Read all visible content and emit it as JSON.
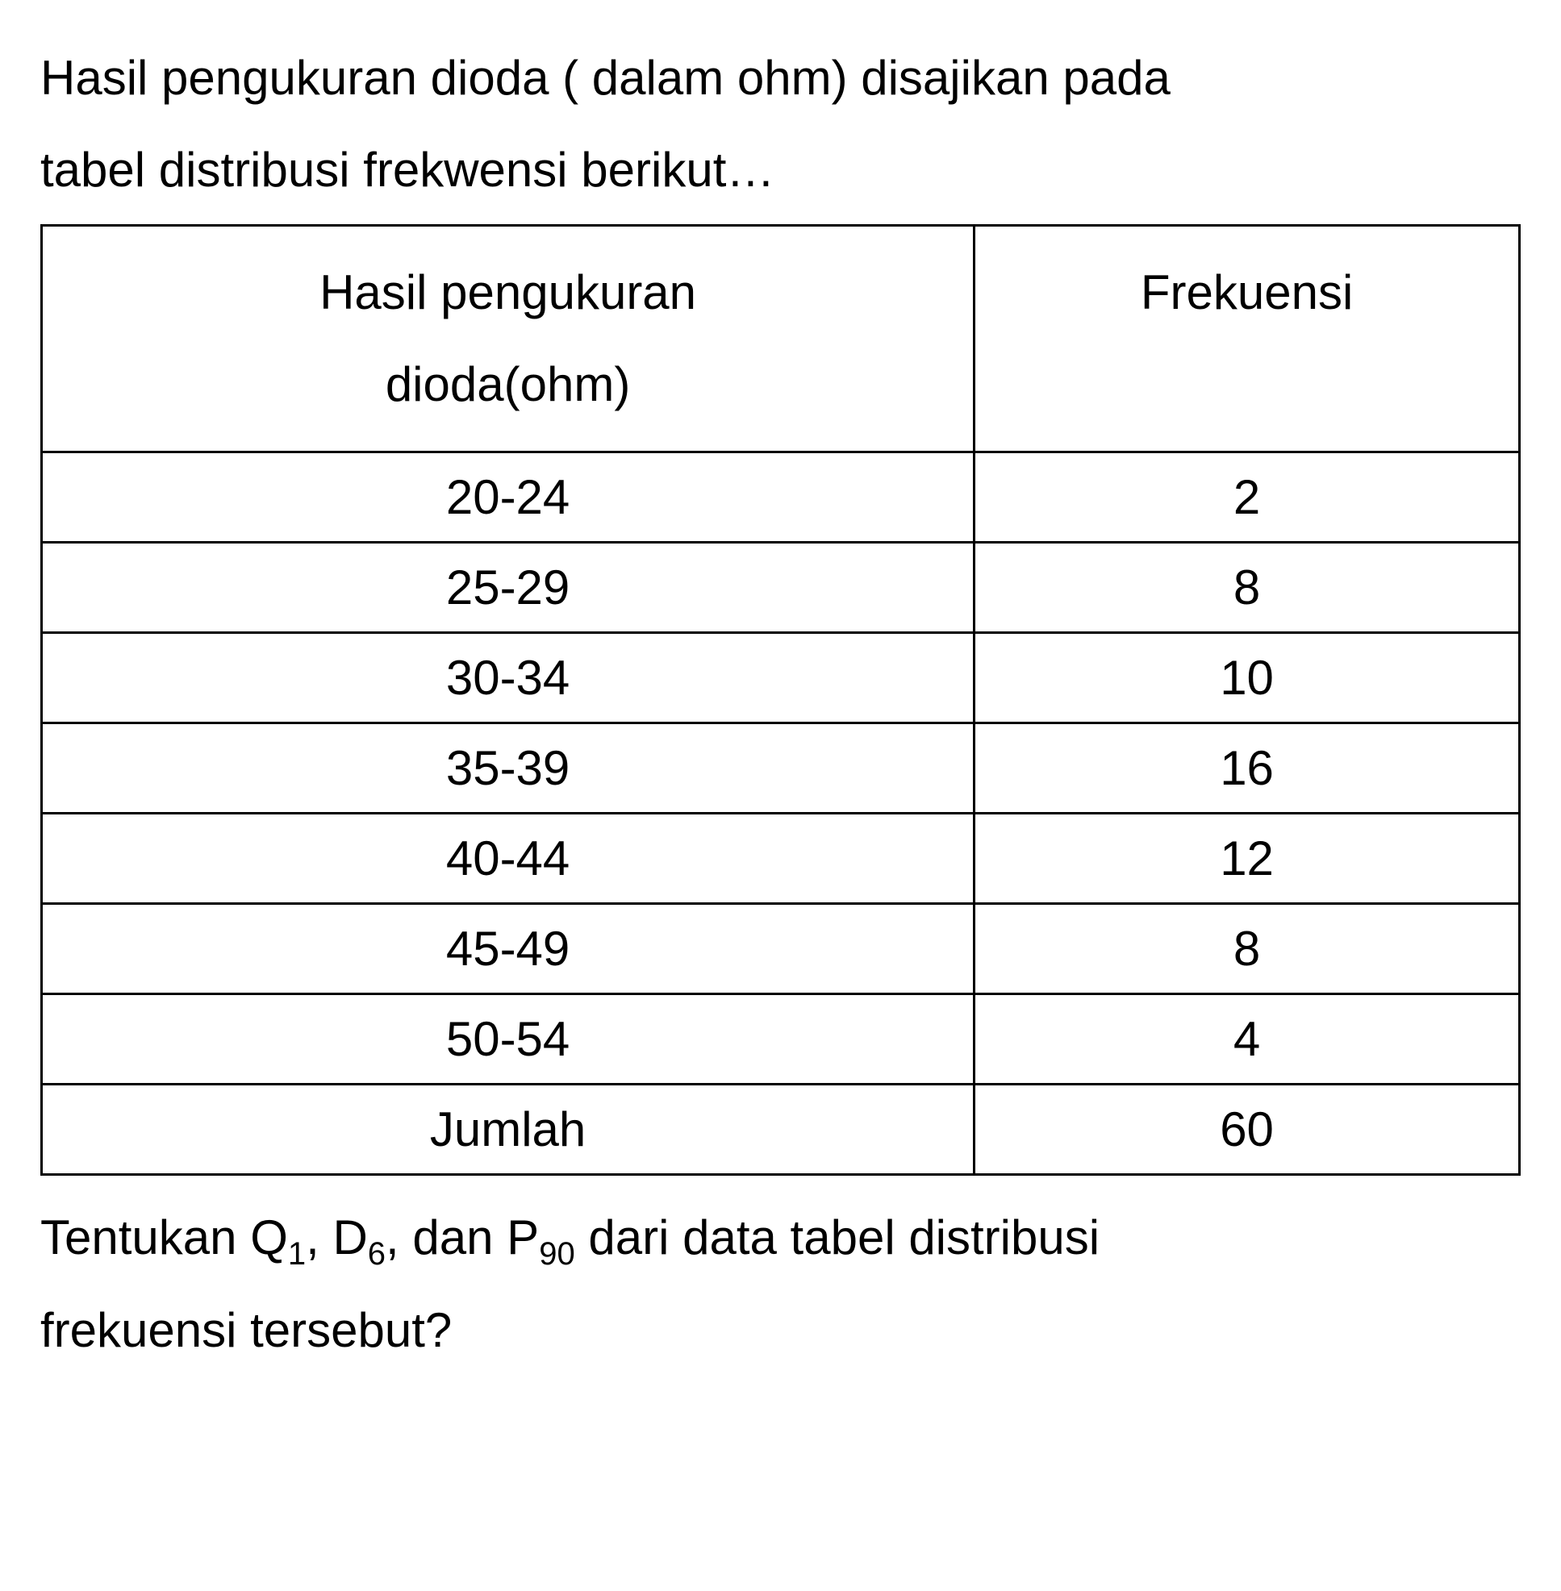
{
  "intro": {
    "line1": "Hasil pengukuran dioda ( dalam ohm) disajikan pada",
    "line2": "tabel distribusi frekwensi berikut…"
  },
  "table": {
    "header1_line1": "Hasil pengukuran",
    "header1_line2": "dioda(ohm)",
    "header2": "Frekuensi",
    "rows": [
      {
        "range": "20-24",
        "freq": "2"
      },
      {
        "range": "25-29",
        "freq": "8"
      },
      {
        "range": "30-34",
        "freq": "10"
      },
      {
        "range": "35-39",
        "freq": "16"
      },
      {
        "range": "40-44",
        "freq": "12"
      },
      {
        "range": "45-49",
        "freq": "8"
      },
      {
        "range": "50-54",
        "freq": "4"
      }
    ],
    "total_label": "Jumlah",
    "total_value": "60",
    "border_color": "#000000",
    "background_color": "#ffffff",
    "font_size": 60,
    "column_widths": [
      "50%",
      "50%"
    ]
  },
  "question": {
    "prefix": "Tentukan ",
    "q1_base": "Q",
    "q1_sub": "1",
    "sep1": ", ",
    "d6_base": "D",
    "d6_sub": "6",
    "sep2": ", dan ",
    "p90_base": "P",
    "p90_sub": "90",
    "suffix1": " dari data tabel distribusi",
    "suffix2": "frekuensi tersebut?"
  },
  "colors": {
    "text": "#000000",
    "background": "#ffffff",
    "border": "#000000"
  }
}
